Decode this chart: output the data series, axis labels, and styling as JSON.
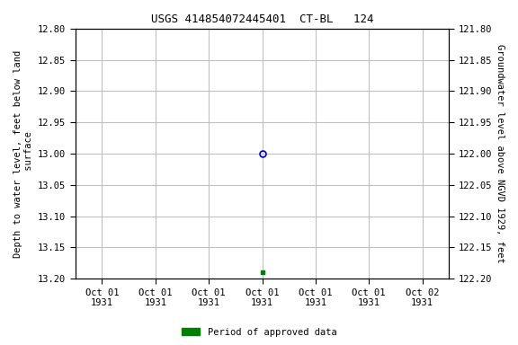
{
  "title": "USGS 414854072445401  CT-BL   124",
  "ylabel_left": "Depth to water level, feet below land\n surface",
  "ylabel_right": "Groundwater level above NGVD 1929, feet",
  "ylim_left": [
    12.8,
    13.2
  ],
  "ylim_right": [
    122.2,
    121.8
  ],
  "y_ticks_left": [
    12.8,
    12.85,
    12.9,
    12.95,
    13.0,
    13.05,
    13.1,
    13.15,
    13.2
  ],
  "y_ticks_right": [
    122.2,
    122.15,
    122.1,
    122.05,
    122.0,
    121.95,
    121.9,
    121.85,
    121.8
  ],
  "open_circle_depth": 13.0,
  "filled_square_depth": 13.19,
  "background_color": "#ffffff",
  "grid_color": "#c0c0c0",
  "open_circle_color": "#0000cc",
  "filled_square_color": "#008000",
  "legend_label": "Period of approved data",
  "legend_color": "#008000",
  "font_family": "monospace",
  "title_fontsize": 9,
  "axis_fontsize": 7.5,
  "tick_fontsize": 7.5,
  "tick_labels": [
    "Oct 01\n1931",
    "Oct 01\n1931",
    "Oct 01\n1931",
    "Oct 01\n1931",
    "Oct 01\n1931",
    "Oct 01\n1931",
    "Oct 02\n1931"
  ]
}
